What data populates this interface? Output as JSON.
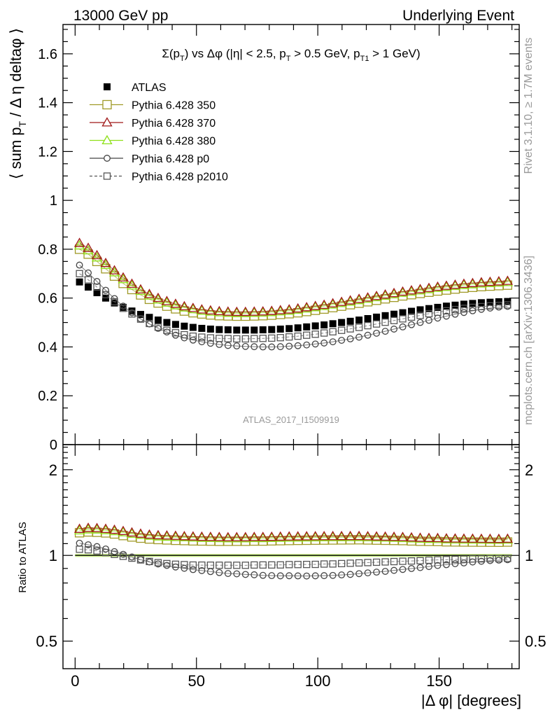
{
  "header": {
    "left": "13000 GeV pp",
    "right": "Underlying Event"
  },
  "side_labels": {
    "rivet": "Rivet 3.1.10, ≥ 1.7M events",
    "mcplots": "mcplots.cern.ch [arXiv:1306.3436]"
  },
  "chart_data": [
    {
      "type": "scatter",
      "panel": "main",
      "title": "Σ(p_T) vs Δφ (|η| < 2.5, p_T > 0.5 GeV, p_T1 > 1 GeV)",
      "watermark": "ATLAS_2017_I1509919",
      "ylabel": "⟨ sum p_T / Δη deltaφ ⟩",
      "xlim": [
        -5,
        183
      ],
      "ylim": [
        0,
        1.72
      ],
      "y_ticks": [
        0,
        0.2,
        0.4,
        0.6,
        0.8,
        1,
        1.2,
        1.4,
        1.6
      ],
      "x": [
        1.8,
        5.4,
        9,
        12.6,
        16.2,
        19.8,
        23.4,
        27,
        30.6,
        34.2,
        37.8,
        41.4,
        45,
        48.6,
        52.2,
        55.8,
        59.4,
        63,
        66.6,
        70.2,
        73.8,
        77.4,
        81,
        84.6,
        88.2,
        91.8,
        95.4,
        99,
        102.6,
        106.2,
        109.8,
        113.4,
        117,
        120.6,
        124.2,
        127.8,
        131.4,
        135,
        138.6,
        142.2,
        145.8,
        149.4,
        153,
        156.6,
        160.2,
        163.8,
        167.4,
        171,
        174.6,
        178.2
      ],
      "series": [
        {
          "name": "ATLAS",
          "style": "data",
          "values": [
            0.666,
            0.645,
            0.622,
            0.6,
            0.58,
            0.562,
            0.547,
            0.533,
            0.521,
            0.51,
            0.5,
            0.492,
            0.485,
            0.48,
            0.476,
            0.473,
            0.471,
            0.47,
            0.469,
            0.469,
            0.469,
            0.47,
            0.471,
            0.473,
            0.475,
            0.478,
            0.482,
            0.486,
            0.49,
            0.495,
            0.5,
            0.505,
            0.51,
            0.516,
            0.522,
            0.528,
            0.534,
            0.54,
            0.546,
            0.552,
            0.557,
            0.562,
            0.567,
            0.571,
            0.575,
            0.578,
            0.581,
            0.583,
            0.585,
            0.586
          ]
        },
        {
          "name": "Pythia 6.428 350",
          "style": "open-square",
          "color": "#a09a28",
          "values": [
            0.8,
            0.78,
            0.75,
            0.72,
            0.69,
            0.66,
            0.635,
            0.613,
            0.595,
            0.58,
            0.567,
            0.556,
            0.547,
            0.54,
            0.535,
            0.531,
            0.528,
            0.527,
            0.526,
            0.526,
            0.527,
            0.528,
            0.53,
            0.533,
            0.536,
            0.54,
            0.545,
            0.55,
            0.555,
            0.561,
            0.567,
            0.573,
            0.579,
            0.585,
            0.591,
            0.597,
            0.603,
            0.609,
            0.614,
            0.619,
            0.624,
            0.629,
            0.633,
            0.637,
            0.641,
            0.644,
            0.647,
            0.649,
            0.651,
            0.653
          ]
        },
        {
          "name": "Pythia 6.428 370",
          "style": "open-triangle",
          "color": "#a01818",
          "values": [
            0.825,
            0.805,
            0.775,
            0.743,
            0.713,
            0.684,
            0.658,
            0.635,
            0.616,
            0.6,
            0.587,
            0.576,
            0.566,
            0.559,
            0.553,
            0.549,
            0.546,
            0.544,
            0.543,
            0.543,
            0.544,
            0.545,
            0.547,
            0.55,
            0.553,
            0.557,
            0.562,
            0.567,
            0.572,
            0.578,
            0.584,
            0.59,
            0.596,
            0.602,
            0.608,
            0.614,
            0.62,
            0.626,
            0.631,
            0.636,
            0.641,
            0.646,
            0.65,
            0.654,
            0.658,
            0.661,
            0.664,
            0.666,
            0.668,
            0.67
          ]
        },
        {
          "name": "Pythia 6.428 380",
          "style": "open-triangle",
          "color": "#8ee018",
          "values": [
            0.815,
            0.795,
            0.766,
            0.735,
            0.705,
            0.677,
            0.651,
            0.629,
            0.61,
            0.594,
            0.581,
            0.57,
            0.561,
            0.554,
            0.548,
            0.544,
            0.541,
            0.539,
            0.538,
            0.538,
            0.539,
            0.54,
            0.542,
            0.545,
            0.548,
            0.552,
            0.557,
            0.562,
            0.567,
            0.573,
            0.579,
            0.585,
            0.591,
            0.597,
            0.603,
            0.609,
            0.615,
            0.621,
            0.626,
            0.631,
            0.636,
            0.641,
            0.645,
            0.649,
            0.653,
            0.656,
            0.659,
            0.661,
            0.663,
            0.665
          ]
        },
        {
          "name": "Pythia 6.428 p0",
          "style": "open-circle",
          "color": "#444444",
          "values": [
            0.735,
            0.703,
            0.668,
            0.632,
            0.598,
            0.567,
            0.54,
            0.515,
            0.494,
            0.476,
            0.461,
            0.448,
            0.437,
            0.428,
            0.421,
            0.415,
            0.41,
            0.406,
            0.404,
            0.402,
            0.401,
            0.4,
            0.4,
            0.401,
            0.403,
            0.405,
            0.408,
            0.412,
            0.416,
            0.421,
            0.427,
            0.433,
            0.44,
            0.448,
            0.456,
            0.464,
            0.473,
            0.482,
            0.491,
            0.5,
            0.509,
            0.518,
            0.526,
            0.534,
            0.541,
            0.548,
            0.554,
            0.559,
            0.563,
            0.566
          ]
        },
        {
          "name": "Pythia 6.428 p2010",
          "style": "open-square-dashed",
          "color": "#555555",
          "values": [
            0.7,
            0.675,
            0.645,
            0.614,
            0.585,
            0.558,
            0.535,
            0.514,
            0.496,
            0.481,
            0.468,
            0.458,
            0.45,
            0.444,
            0.44,
            0.437,
            0.435,
            0.434,
            0.433,
            0.433,
            0.434,
            0.435,
            0.436,
            0.438,
            0.441,
            0.444,
            0.448,
            0.452,
            0.457,
            0.462,
            0.468,
            0.474,
            0.48,
            0.487,
            0.494,
            0.501,
            0.508,
            0.515,
            0.522,
            0.529,
            0.536,
            0.542,
            0.548,
            0.553,
            0.558,
            0.562,
            0.565,
            0.568,
            0.57,
            0.572
          ]
        }
      ]
    },
    {
      "type": "scatter",
      "panel": "ratio",
      "ylabel": "Ratio to ATLAS",
      "xlabel": "|Δ φ| [degrees]",
      "y_scale": "log",
      "ylim": [
        0.4,
        2.45
      ],
      "y_ticks": [
        0.5,
        1,
        2
      ],
      "x_ticks": [
        0,
        50,
        100,
        150
      ]
    }
  ]
}
